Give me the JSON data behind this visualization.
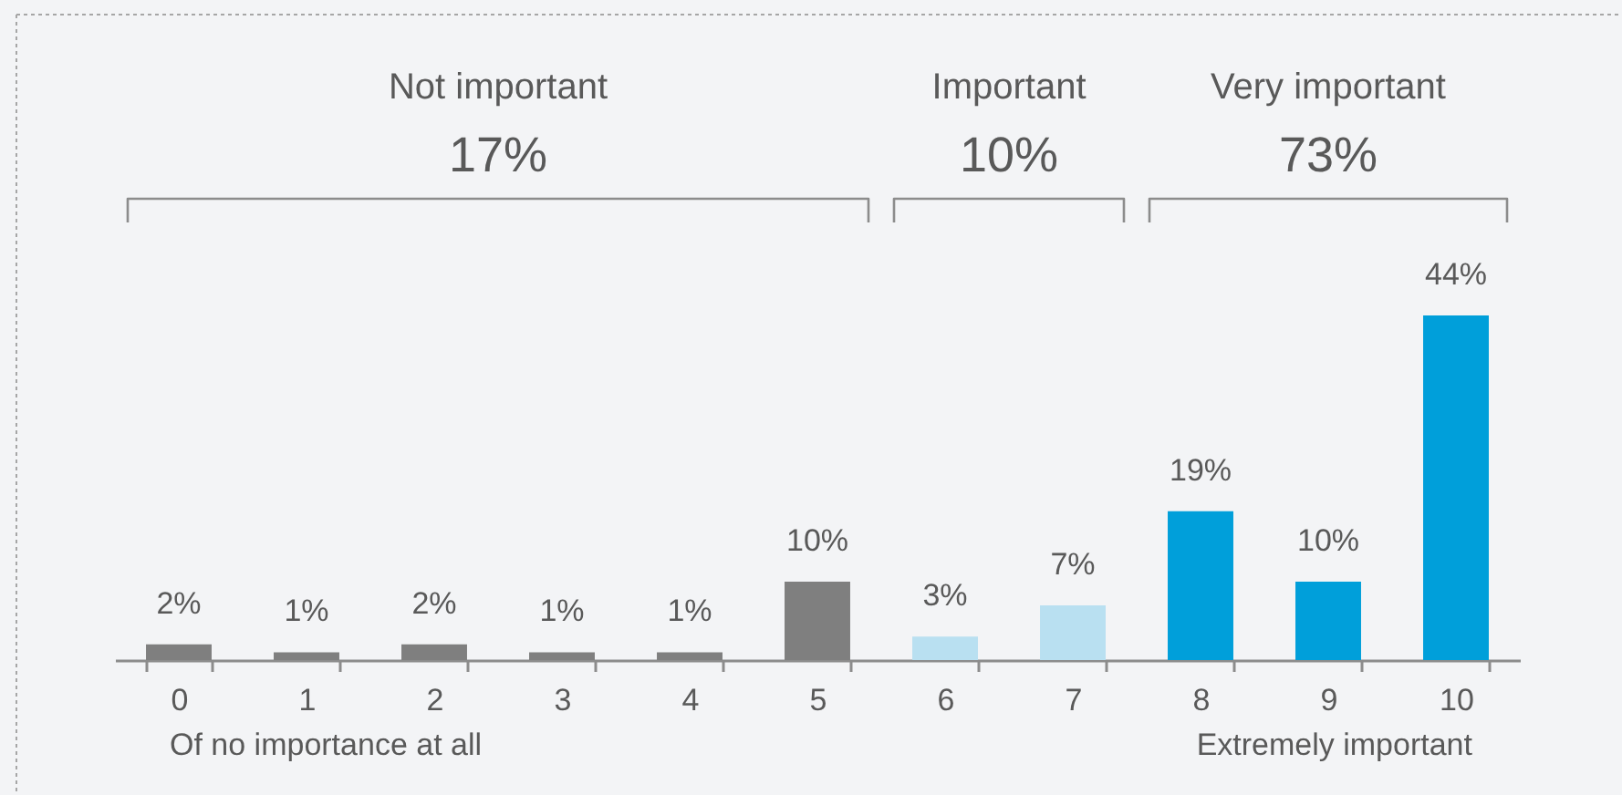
{
  "chart_data": {
    "type": "bar",
    "categories": [
      "0",
      "1",
      "2",
      "3",
      "4",
      "5",
      "6",
      "7",
      "8",
      "9",
      "10"
    ],
    "values": [
      2,
      1,
      2,
      1,
      1,
      10,
      3,
      7,
      19,
      10,
      44
    ],
    "colors": [
      "#7f7f7f",
      "#7f7f7f",
      "#7f7f7f",
      "#7f7f7f",
      "#7f7f7f",
      "#7f7f7f",
      "#b9e0f1",
      "#b9e0f1",
      "#009fda",
      "#009fda",
      "#009fda"
    ],
    "value_labels": [
      "2%",
      "1%",
      "2%",
      "1%",
      "1%",
      "10%",
      "3%",
      "7%",
      "19%",
      "10%",
      "44%"
    ],
    "annotations": [
      "Not important",
      "17%",
      "Important",
      "10%",
      "Very important",
      "73%",
      "Of no importance at all",
      "Extremely important"
    ]
  }
}
